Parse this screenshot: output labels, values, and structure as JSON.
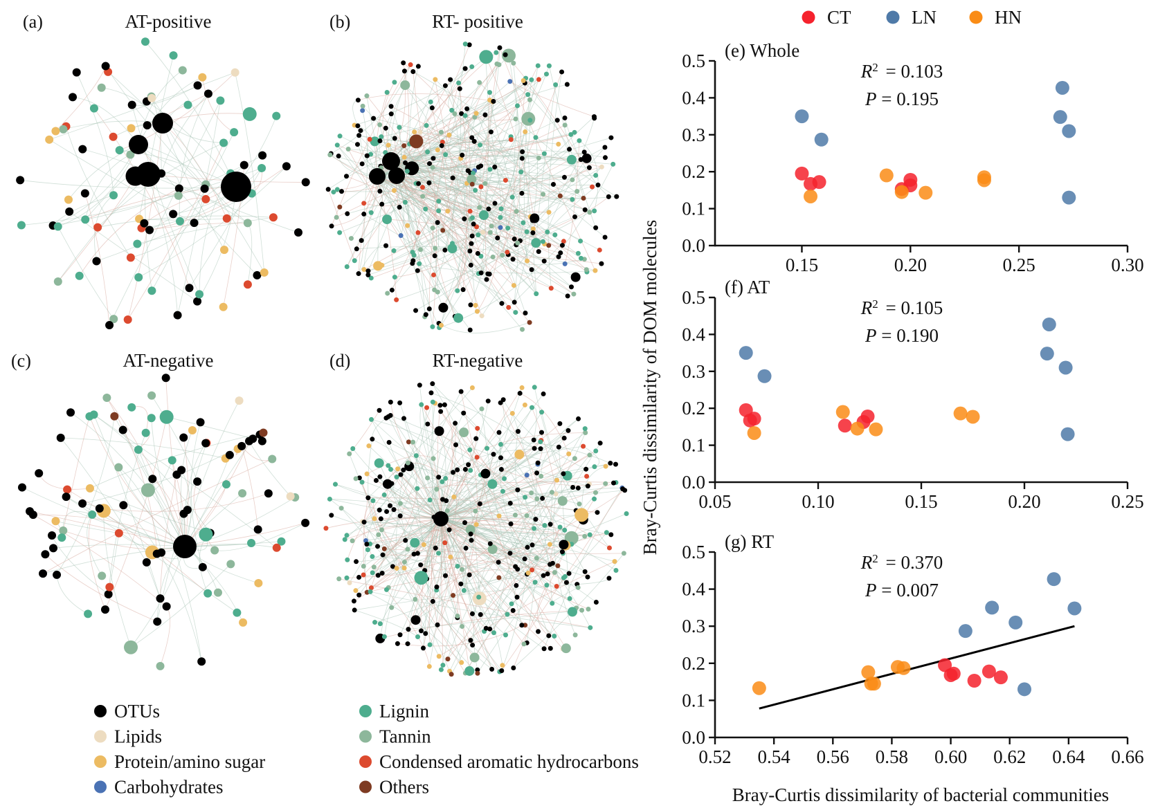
{
  "figure": {
    "networks": [
      {
        "id": "a",
        "letter": "(a)",
        "title": "AT-positive",
        "size": "sparse"
      },
      {
        "id": "b",
        "letter": "(b)",
        "title": "RT- positive",
        "size": "dense"
      },
      {
        "id": "c",
        "letter": "(c)",
        "title": "AT-negative",
        "size": "sparse"
      },
      {
        "id": "d",
        "letter": "(d)",
        "title": "RT-negative",
        "size": "dense"
      }
    ],
    "network_legend": [
      {
        "label": "OTUs",
        "color": "#000000"
      },
      {
        "label": "Lipids",
        "color": "#eddcc0"
      },
      {
        "label": "Protein/amino sugar",
        "color": "#ecbb62"
      },
      {
        "label": "Carbohydrates",
        "color": "#4a72b4"
      },
      {
        "label": "Lignin",
        "color": "#4ead8e"
      },
      {
        "label": "Tannin",
        "color": "#8db79b"
      },
      {
        "label": "Condensed aromatic hydrocarbons",
        "color": "#dc4a2f"
      },
      {
        "label": "Others",
        "color": "#7e3b22"
      }
    ],
    "scatter_legend": [
      {
        "label": "CT",
        "color": "#f5222d"
      },
      {
        "label": "LN",
        "color": "#4f7aa8"
      },
      {
        "label": "HN",
        "color": "#fa8c16"
      }
    ],
    "shared_ylabel": "Bray-Curtis dissimilarity of DOM molecules",
    "shared_xlabel": "Bray-Curtis dissimilarity of  bacterial communities"
  },
  "chart_data": [
    {
      "type": "scatter",
      "panel": "(e)",
      "title": "(e) Whole",
      "r2_label": "= 0.103",
      "p_label": "= 0.195",
      "xlim": [
        0.11,
        0.3
      ],
      "ylim": [
        0.0,
        0.5
      ],
      "xticks": [
        0.15,
        0.2,
        0.25,
        0.3
      ],
      "xtick_labels": [
        "0.15",
        "0.20",
        "0.25",
        "0.30"
      ],
      "yticks": [
        0.0,
        0.1,
        0.2,
        0.3,
        0.4,
        0.5
      ],
      "ytick_labels": [
        "0.0",
        "0.1",
        "0.2",
        "0.3",
        "0.4",
        "0.5"
      ],
      "series": [
        {
          "name": "LN",
          "points": [
            [
              0.15,
              0.35
            ],
            [
              0.159,
              0.287
            ],
            [
              0.27,
              0.427
            ],
            [
              0.269,
              0.348
            ],
            [
              0.273,
              0.31
            ],
            [
              0.273,
              0.13
            ]
          ]
        },
        {
          "name": "CT",
          "points": [
            [
              0.15,
              0.195
            ],
            [
              0.154,
              0.167
            ],
            [
              0.158,
              0.172
            ],
            [
              0.196,
              0.153
            ],
            [
              0.2,
              0.178
            ],
            [
              0.2,
              0.163
            ]
          ]
        },
        {
          "name": "HN",
          "points": [
            [
              0.154,
              0.133
            ],
            [
              0.189,
              0.19
            ],
            [
              0.196,
              0.145
            ],
            [
              0.207,
              0.143
            ],
            [
              0.234,
              0.185
            ],
            [
              0.234,
              0.177
            ]
          ]
        }
      ],
      "fit_line": null
    },
    {
      "type": "scatter",
      "panel": "(f)",
      "title": "(f) AT",
      "r2_label": "= 0.105",
      "p_label": "= 0.190",
      "xlim": [
        0.05,
        0.25
      ],
      "ylim": [
        0.0,
        0.5
      ],
      "xticks": [
        0.05,
        0.1,
        0.15,
        0.2,
        0.25
      ],
      "xtick_labels": [
        "0.05",
        "0.10",
        "0.15",
        "0.20",
        "0.25"
      ],
      "yticks": [
        0.0,
        0.1,
        0.2,
        0.3,
        0.4,
        0.5
      ],
      "ytick_labels": [
        "0.0",
        "0.1",
        "0.2",
        "0.3",
        "0.4",
        "0.5"
      ],
      "series": [
        {
          "name": "LN",
          "points": [
            [
              0.065,
              0.35
            ],
            [
              0.074,
              0.287
            ],
            [
              0.212,
              0.427
            ],
            [
              0.211,
              0.348
            ],
            [
              0.22,
              0.31
            ],
            [
              0.221,
              0.13
            ]
          ]
        },
        {
          "name": "CT",
          "points": [
            [
              0.065,
              0.195
            ],
            [
              0.067,
              0.167
            ],
            [
              0.069,
              0.172
            ],
            [
              0.113,
              0.153
            ],
            [
              0.124,
              0.178
            ],
            [
              0.122,
              0.163
            ]
          ]
        },
        {
          "name": "HN",
          "points": [
            [
              0.069,
              0.133
            ],
            [
              0.112,
              0.19
            ],
            [
              0.119,
              0.145
            ],
            [
              0.128,
              0.143
            ],
            [
              0.169,
              0.186
            ],
            [
              0.175,
              0.177
            ]
          ]
        }
      ],
      "fit_line": null
    },
    {
      "type": "scatter",
      "panel": "(g)",
      "title": "(g) RT",
      "r2_label": "= 0.370",
      "p_label": "= 0.007",
      "xlim": [
        0.52,
        0.66
      ],
      "ylim": [
        0.0,
        0.5
      ],
      "xticks": [
        0.52,
        0.54,
        0.56,
        0.58,
        0.6,
        0.62,
        0.64,
        0.66
      ],
      "xtick_labels": [
        "0.52",
        "0.54",
        "0.56",
        "0.58",
        "0.60",
        "0.62",
        "0.64",
        "0.66"
      ],
      "yticks": [
        0.0,
        0.1,
        0.2,
        0.3,
        0.4,
        0.5
      ],
      "ytick_labels": [
        "0.0",
        "0.1",
        "0.2",
        "0.3",
        "0.4",
        "0.5"
      ],
      "series": [
        {
          "name": "LN",
          "points": [
            [
              0.605,
              0.287
            ],
            [
              0.614,
              0.35
            ],
            [
              0.622,
              0.31
            ],
            [
              0.635,
              0.427
            ],
            [
              0.642,
              0.348
            ],
            [
              0.625,
              0.13
            ]
          ]
        },
        {
          "name": "CT",
          "points": [
            [
              0.598,
              0.195
            ],
            [
              0.6,
              0.168
            ],
            [
              0.601,
              0.172
            ],
            [
              0.608,
              0.153
            ],
            [
              0.613,
              0.178
            ],
            [
              0.617,
              0.162
            ]
          ]
        },
        {
          "name": "HN",
          "points": [
            [
              0.535,
              0.133
            ],
            [
              0.572,
              0.176
            ],
            [
              0.573,
              0.145
            ],
            [
              0.574,
              0.145
            ],
            [
              0.582,
              0.19
            ],
            [
              0.584,
              0.187
            ]
          ]
        }
      ],
      "fit_line": [
        [
          0.535,
          0.078
        ],
        [
          0.642,
          0.3
        ]
      ]
    }
  ]
}
